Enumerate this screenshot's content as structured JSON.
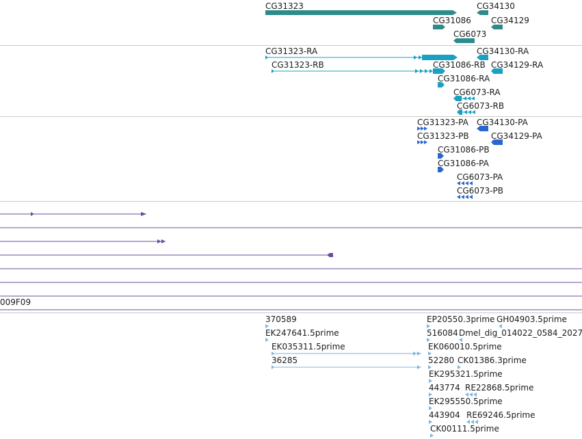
{
  "colors": {
    "gene": "#2e8b8b",
    "mrna": "#1aa0c0",
    "protein": "#2a66d0",
    "alignment": "#6a4c9c",
    "est": "#7bb7e0",
    "separator": "#c8c8c8"
  },
  "tracks": {
    "genes": {
      "features": [
        {
          "label": "CG31323"
        },
        {
          "label": "CG34130"
        },
        {
          "label": "CG31086"
        },
        {
          "label": "CG34129"
        },
        {
          "label": "CG6073"
        }
      ]
    },
    "transcripts": {
      "features": [
        {
          "label": "CG31323-RA"
        },
        {
          "label": "CG34130-RA"
        },
        {
          "label": "CG31323-RB"
        },
        {
          "label": "CG31086-RB"
        },
        {
          "label": "CG34129-RA"
        },
        {
          "label": "CG31086-RA"
        },
        {
          "label": "CG6073-RA"
        },
        {
          "label": "CG6073-RB"
        }
      ]
    },
    "proteins": {
      "features": [
        {
          "label": "CG31323-PA"
        },
        {
          "label": "CG34130-PA"
        },
        {
          "label": "CG31323-PB"
        },
        {
          "label": "CG34129-PA"
        },
        {
          "label": "CG31086-PB"
        },
        {
          "label": "CG31086-PA"
        },
        {
          "label": "CG6073-PA"
        },
        {
          "label": "CG6073-PB"
        }
      ]
    },
    "alignments": {
      "partial_label": "009F09"
    },
    "ests": {
      "features": [
        {
          "label": "370589"
        },
        {
          "label": "EP20550.3prime"
        },
        {
          "label": "GH04903.5prime"
        },
        {
          "label": "EK247641.5prime"
        },
        {
          "label": "516084"
        },
        {
          "label": "Dmel_dig_014022_0584_2027"
        },
        {
          "label": "EK035311.5prime"
        },
        {
          "label": "EK060010.5prime"
        },
        {
          "label": "36285"
        },
        {
          "label": "52280"
        },
        {
          "label": "CK01386.3prime"
        },
        {
          "label": "EK295321.5prime"
        },
        {
          "label": "443774"
        },
        {
          "label": "RE22868.5prime"
        },
        {
          "label": "EK295550.5prime"
        },
        {
          "label": "443904"
        },
        {
          "label": "RE69246.5prime"
        },
        {
          "label": "CK00111.5prime"
        }
      ]
    }
  }
}
